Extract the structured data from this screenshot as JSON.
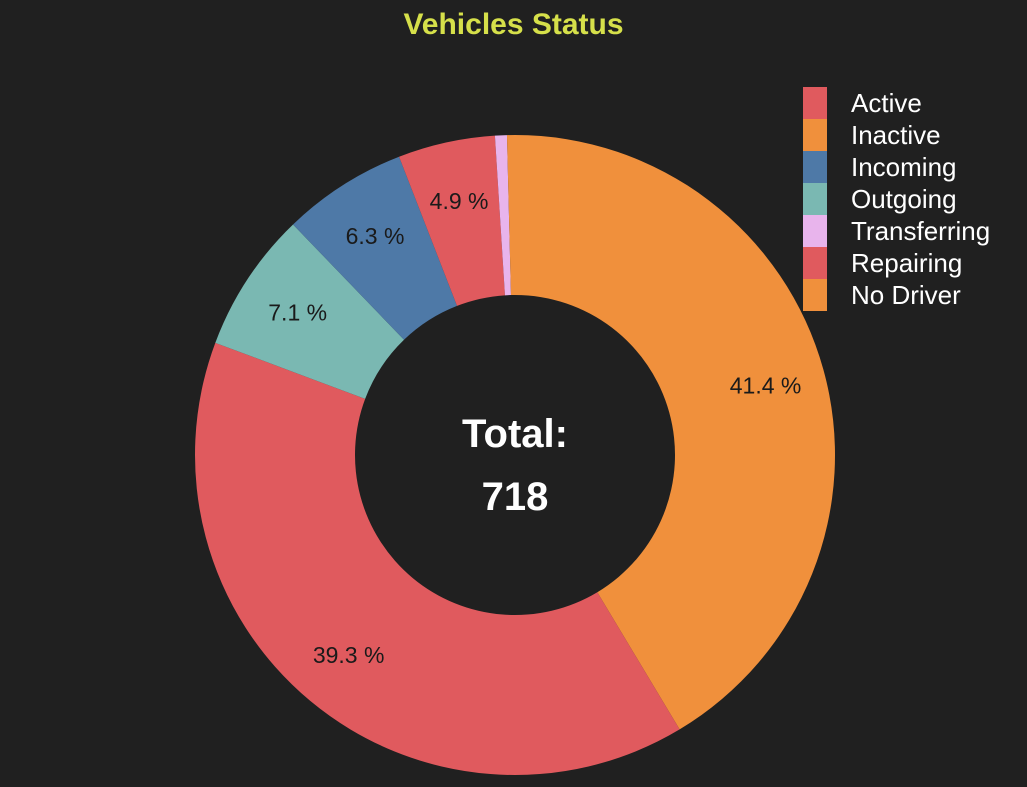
{
  "chart_data": {
    "type": "pie",
    "variant": "donut",
    "title": "Vehicles Status",
    "title_color": "#d6e04a",
    "background_color": "#202020",
    "center_text": {
      "line1": "Total:",
      "line2": "718"
    },
    "total": 718,
    "legend_position": "top-right",
    "start_angle_deg": 0,
    "direction": "clockwise",
    "slices": [
      {
        "label": "Inactive",
        "percent": 41.4,
        "label_text": "41.4 %",
        "color": "#f0903c"
      },
      {
        "label": "Active",
        "percent": 39.3,
        "label_text": "39.3 %",
        "color": "#e05a5e"
      },
      {
        "label": "Outgoing",
        "percent": 7.1,
        "label_text": "7.1 %",
        "color": "#7ab8b2"
      },
      {
        "label": "Incoming",
        "percent": 6.3,
        "label_text": "6.3 %",
        "color": "#4e79a7"
      },
      {
        "label": "Repairing",
        "percent": 4.9,
        "label_text": "4.9 %",
        "color": "#e05a5e"
      },
      {
        "label": "Transferring",
        "percent": 0.6,
        "label_text": "",
        "color": "#e8b4ec"
      },
      {
        "label": "No Driver",
        "percent": 0.4,
        "label_text": "",
        "color": "#f0903c"
      }
    ],
    "legend": [
      {
        "label": "Active",
        "color": "#e05a5e"
      },
      {
        "label": "Inactive",
        "color": "#f0903c"
      },
      {
        "label": "Incoming",
        "color": "#4e79a7"
      },
      {
        "label": "Outgoing",
        "color": "#7ab8b2"
      },
      {
        "label": "Transferring",
        "color": "#e8b4ec"
      },
      {
        "label": "Repairing",
        "color": "#e05a5e"
      },
      {
        "label": "No Driver",
        "color": "#f0903c"
      }
    ]
  }
}
